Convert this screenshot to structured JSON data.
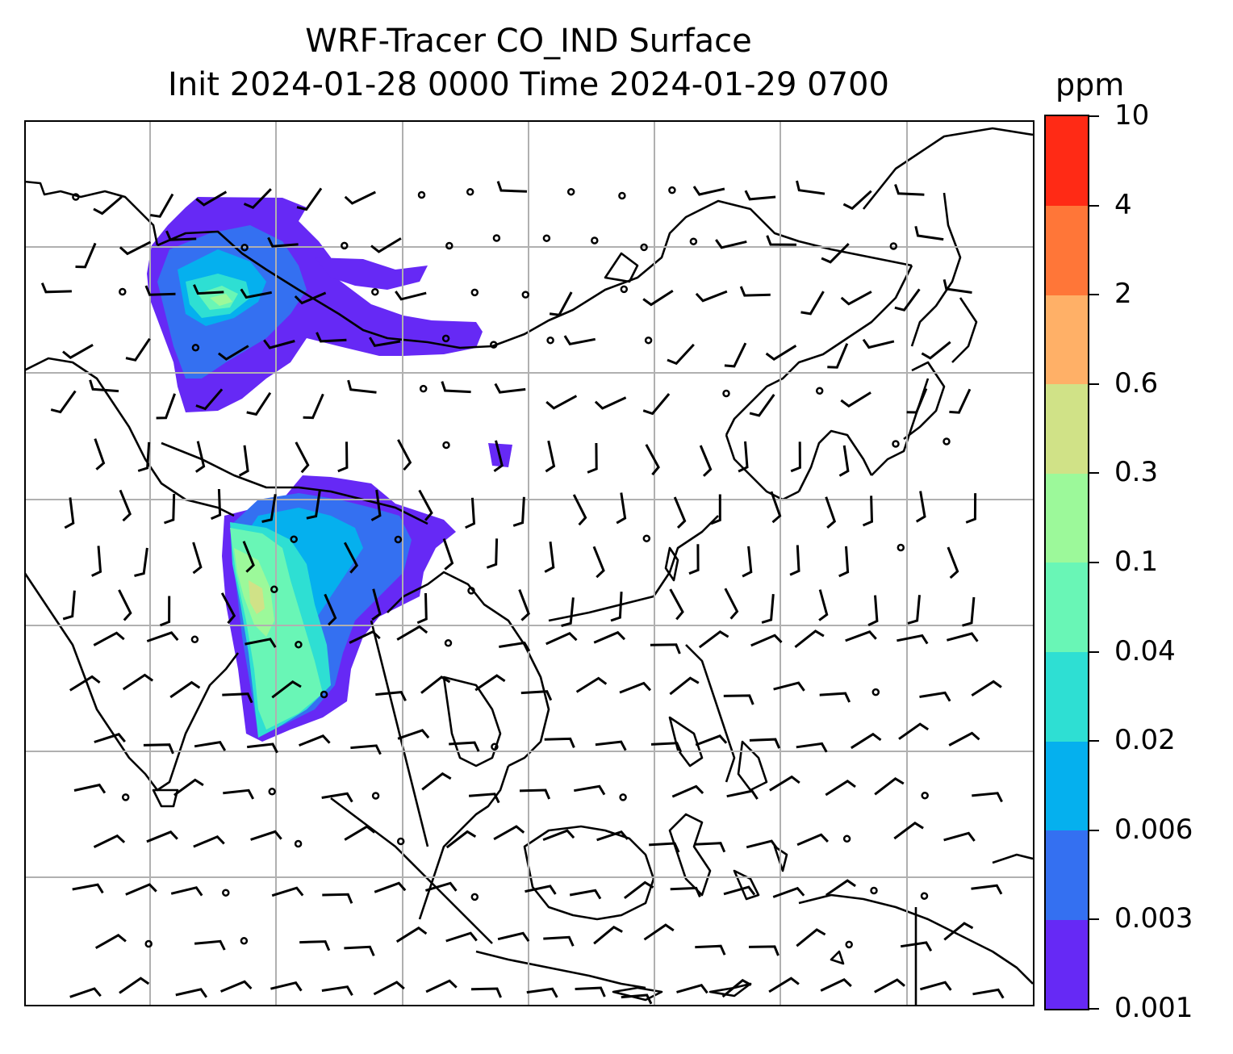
{
  "title": {
    "line1": "WRF-Tracer CO_IND Surface",
    "line2": "Init 2024-01-28 0000 Time 2024-01-29 0700"
  },
  "colorbar": {
    "unit": "ppm",
    "ticks": [
      "0.001",
      "0.003",
      "0.006",
      "0.02",
      "0.04",
      "0.1",
      "0.3",
      "0.6",
      "2",
      "4",
      "10"
    ],
    "colors": [
      "#6629f5",
      "#3470f1",
      "#05b0ee",
      "#2edfd3",
      "#69f6b6",
      "#9cf99a",
      "#d0e287",
      "#ffb067",
      "#ff7638",
      "#ff2a15"
    ]
  },
  "map": {
    "gridlines": true,
    "land_outline_color": "#000000",
    "grid_color": "#b0b0b0"
  }
}
